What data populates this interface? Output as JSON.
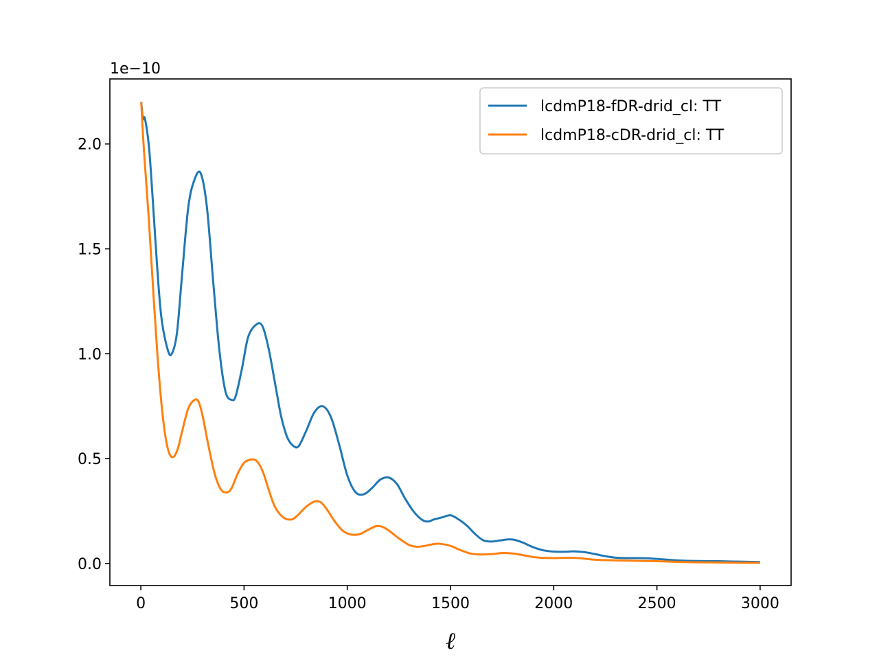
{
  "chart_data": {
    "type": "line",
    "title": "",
    "xlabel": "ℓ",
    "ylabel": "",
    "offset_text": "1e−10",
    "xlim": [
      -150,
      3150
    ],
    "ylim": [
      -0.105,
      2.31
    ],
    "xticks": [
      0,
      500,
      1000,
      1500,
      2000,
      2500,
      3000
    ],
    "xtick_labels": [
      "0",
      "500",
      "1000",
      "1500",
      "2000",
      "2500",
      "3000"
    ],
    "yticks": [
      0.0,
      0.5,
      1.0,
      1.5,
      2.0
    ],
    "ytick_labels": [
      "0.0",
      "0.5",
      "1.0",
      "1.5",
      "2.0"
    ],
    "grid": false,
    "legend_position": "upper right",
    "series": [
      {
        "name": "lcdmP18-fDR-drid_cl: TT",
        "color": "#1f77b4",
        "x": [
          2,
          10,
          20,
          40,
          60,
          80,
          100,
          130,
          150,
          175,
          200,
          230,
          260,
          290,
          320,
          350,
          380,
          410,
          440,
          460,
          490,
          520,
          560,
          590,
          620,
          650,
          680,
          710,
          740,
          765,
          800,
          840,
          880,
          920,
          960,
          1000,
          1040,
          1080,
          1120,
          1160,
          1200,
          1240,
          1280,
          1320,
          1360,
          1390,
          1420,
          1460,
          1500,
          1540,
          1580,
          1620,
          1660,
          1700,
          1740,
          1780,
          1810,
          1850,
          1900,
          1950,
          2000,
          2050,
          2100,
          2150,
          2200,
          2250,
          2300,
          2350,
          2400,
          2450,
          2500,
          2600,
          2700,
          2800,
          2900,
          3000
        ],
        "values": [
          2.2,
          2.12,
          2.12,
          1.98,
          1.7,
          1.4,
          1.17,
          1.02,
          1.0,
          1.1,
          1.38,
          1.7,
          1.83,
          1.86,
          1.7,
          1.35,
          1.02,
          0.82,
          0.78,
          0.8,
          0.93,
          1.08,
          1.14,
          1.13,
          1.02,
          0.86,
          0.7,
          0.6,
          0.56,
          0.56,
          0.63,
          0.72,
          0.75,
          0.7,
          0.57,
          0.42,
          0.34,
          0.33,
          0.36,
          0.4,
          0.41,
          0.38,
          0.31,
          0.25,
          0.21,
          0.2,
          0.21,
          0.22,
          0.23,
          0.21,
          0.18,
          0.14,
          0.11,
          0.105,
          0.11,
          0.115,
          0.113,
          0.1,
          0.078,
          0.063,
          0.057,
          0.056,
          0.058,
          0.054,
          0.045,
          0.035,
          0.028,
          0.026,
          0.026,
          0.025,
          0.022,
          0.015,
          0.012,
          0.011,
          0.009,
          0.007
        ]
      },
      {
        "name": "lcdmP18-cDR-drid_cl: TT",
        "color": "#ff7f0e",
        "x": [
          2,
          10,
          20,
          40,
          60,
          80,
          100,
          120,
          140,
          160,
          180,
          200,
          230,
          260,
          280,
          300,
          330,
          360,
          390,
          420,
          440,
          470,
          500,
          530,
          560,
          590,
          620,
          650,
          690,
          730,
          760,
          800,
          840,
          870,
          900,
          940,
          980,
          1020,
          1060,
          1100,
          1140,
          1170,
          1200,
          1250,
          1300,
          1340,
          1380,
          1420,
          1450,
          1500,
          1550,
          1600,
          1650,
          1700,
          1750,
          1800,
          1850,
          1900,
          1950,
          2000,
          2050,
          2100,
          2150,
          2200,
          2300,
          2400,
          2500,
          2600,
          2700,
          2800,
          2900,
          3000
        ],
        "values": [
          2.2,
          2.05,
          1.9,
          1.62,
          1.3,
          1.0,
          0.76,
          0.6,
          0.52,
          0.51,
          0.55,
          0.63,
          0.74,
          0.78,
          0.77,
          0.7,
          0.55,
          0.42,
          0.35,
          0.34,
          0.36,
          0.43,
          0.48,
          0.495,
          0.49,
          0.44,
          0.35,
          0.27,
          0.22,
          0.21,
          0.23,
          0.27,
          0.295,
          0.293,
          0.26,
          0.2,
          0.155,
          0.138,
          0.14,
          0.16,
          0.178,
          0.175,
          0.158,
          0.12,
          0.088,
          0.08,
          0.085,
          0.093,
          0.094,
          0.084,
          0.063,
          0.047,
          0.043,
          0.045,
          0.05,
          0.048,
          0.04,
          0.031,
          0.027,
          0.026,
          0.027,
          0.027,
          0.023,
          0.018,
          0.015,
          0.013,
          0.011,
          0.008,
          0.006,
          0.005,
          0.004,
          0.003
        ]
      }
    ]
  }
}
